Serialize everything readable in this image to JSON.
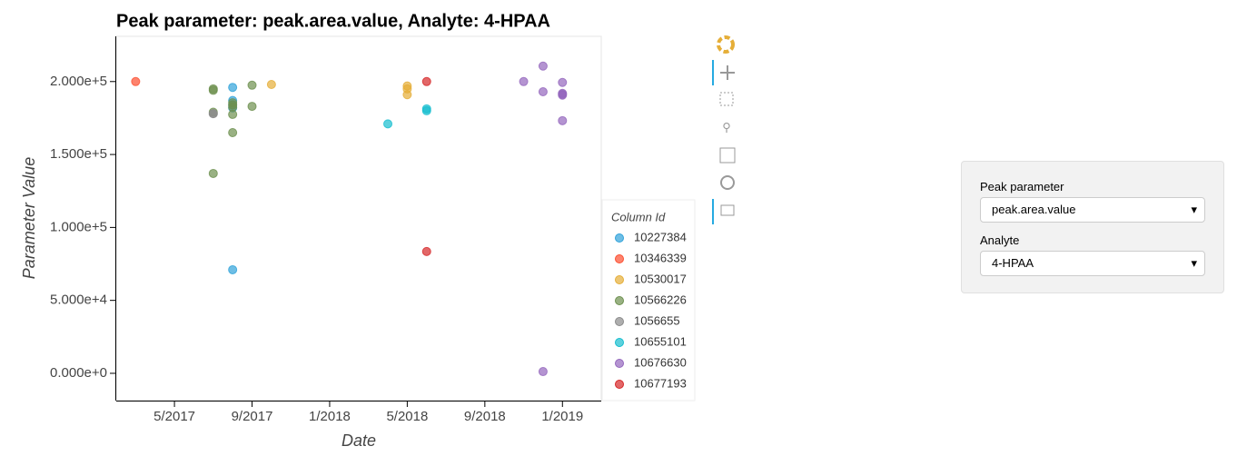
{
  "chart_data": {
    "type": "scatter",
    "title": "Peak parameter: peak.area.value, Analyte: 4-HPAA",
    "x_label": "Date",
    "y_label": "Parameter Value",
    "legend_title": "Column Id",
    "legend": "right",
    "xlim": [
      "2017-02",
      "2019-03"
    ],
    "xticks": [
      {
        "value": "2017-05",
        "label": "5/2017"
      },
      {
        "value": "2017-09",
        "label": "9/2017"
      },
      {
        "value": "2018-01",
        "label": "1/2018"
      },
      {
        "value": "2018-05",
        "label": "5/2018"
      },
      {
        "value": "2018-09",
        "label": "9/2018"
      },
      {
        "value": "2019-01",
        "label": "1/2019"
      }
    ],
    "ylim": [
      -18700,
      231000
    ],
    "yticks": [
      {
        "value": 0,
        "label": "0.000e+0"
      },
      {
        "value": 50000,
        "label": "5.000e+4"
      },
      {
        "value": 100000,
        "label": "1.000e+5"
      },
      {
        "value": 150000,
        "label": "1.500e+5"
      },
      {
        "value": 200000,
        "label": "2.000e+5"
      }
    ],
    "series": [
      {
        "name": "10227384",
        "color": "#30a2da",
        "x": [
          "2017-08",
          "2017-08",
          "2017-08",
          "2017-08",
          "2017-08"
        ],
        "values": [
          196000,
          187000,
          182000,
          71000,
          184000
        ]
      },
      {
        "name": "10346339",
        "color": "#fc4f30",
        "x": [
          "2017-03"
        ],
        "values": [
          200000
        ]
      },
      {
        "name": "10530017",
        "color": "#e5ae38",
        "x": [
          "2017-10",
          "2018-05",
          "2018-05",
          "2018-05"
        ],
        "values": [
          198000,
          191000,
          197000,
          195000
        ]
      },
      {
        "name": "10566226",
        "color": "#6d904f",
        "x": [
          "2017-07",
          "2017-07",
          "2017-07",
          "2017-08",
          "2017-08",
          "2017-08",
          "2017-08",
          "2017-08",
          "2017-07",
          "2017-09",
          "2017-09"
        ],
        "values": [
          195000,
          194000,
          179000,
          177500,
          182500,
          185500,
          184000,
          165000,
          137000,
          183000,
          197500
        ]
      },
      {
        "name": "1056655",
        "color": "#8b8b8b",
        "x": [
          "2017-07",
          "2017-07"
        ],
        "values": [
          178000,
          178000
        ]
      },
      {
        "name": "10655101",
        "color": "#17becf",
        "x": [
          "2018-04",
          "2018-06",
          "2018-06"
        ],
        "values": [
          171000,
          181300,
          180000
        ]
      },
      {
        "name": "10676630",
        "color": "#9467bd",
        "x": [
          "2018-11",
          "2018-12",
          "2018-12",
          "2018-12",
          "2019-01",
          "2019-01",
          "2019-01",
          "2019-01",
          "2019-01"
        ],
        "values": [
          200000,
          210600,
          193000,
          1200,
          199400,
          191900,
          191300,
          190700,
          173200
        ]
      },
      {
        "name": "10677193",
        "color": "#d62728",
        "x": [
          "2018-06",
          "2018-06"
        ],
        "values": [
          200000,
          83500
        ]
      }
    ]
  },
  "controls": {
    "param_label": "Peak parameter",
    "param_value": "peak.area.value",
    "analyte_label": "Analyte",
    "analyte_value": "4-HPAA"
  }
}
